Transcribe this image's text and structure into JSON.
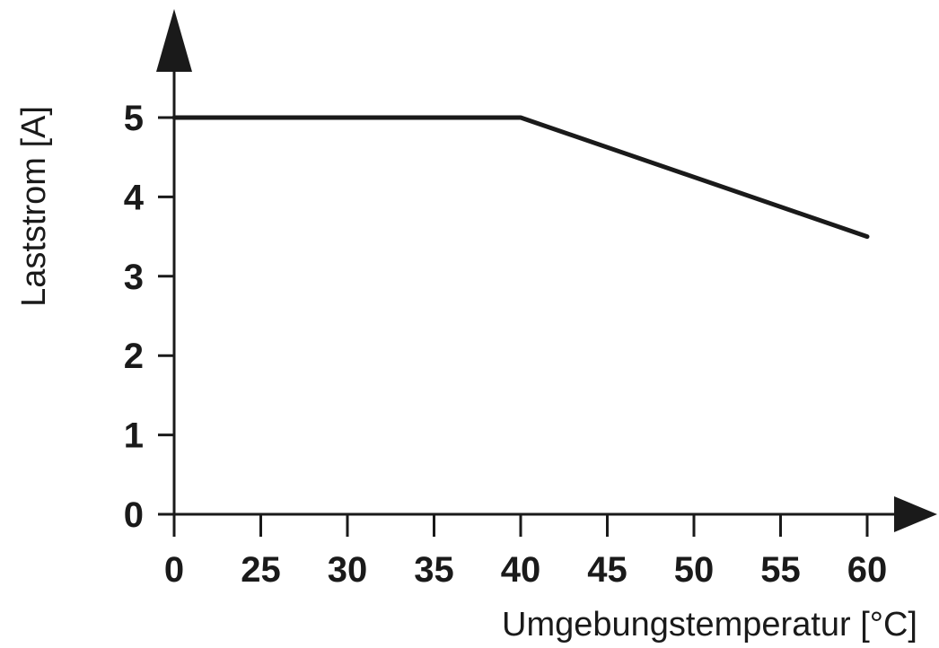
{
  "chart_data": {
    "type": "line",
    "title": "",
    "xlabel": "Umgebungstemperatur [°C]",
    "ylabel": "Laststrom [A]",
    "x_ticks": [
      "0",
      "25",
      "30",
      "35",
      "40",
      "45",
      "50",
      "55",
      "60"
    ],
    "y_ticks": [
      "0",
      "1",
      "2",
      "3",
      "4",
      "5"
    ],
    "ylim": [
      0,
      5
    ],
    "grid": false,
    "series": [
      {
        "x": [
          0,
          40,
          60
        ],
        "y": [
          5,
          5,
          3.5
        ]
      }
    ],
    "colors": {
      "line": "#1a1a1a",
      "axis": "#1a1a1a"
    }
  }
}
